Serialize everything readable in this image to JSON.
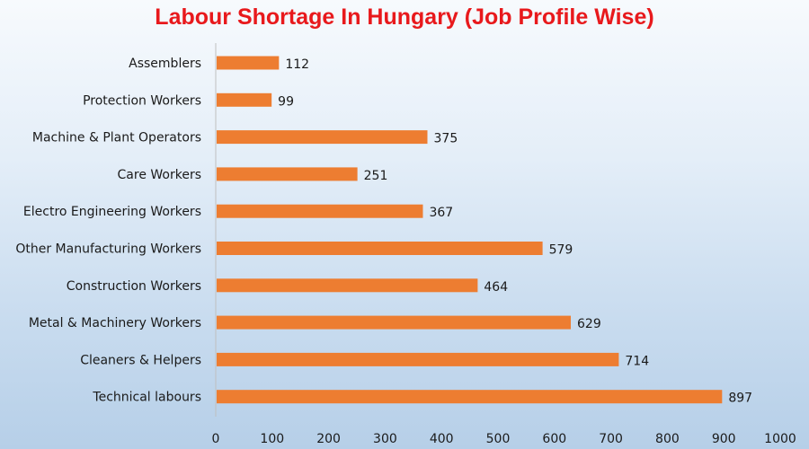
{
  "title": "Labour Shortage In Hungary (Job Profile Wise)",
  "colors": {
    "title": "#e8191c",
    "bar": "#ed7d31",
    "axis": "#bfbfbf"
  },
  "chart_data": {
    "type": "bar",
    "orientation": "horizontal",
    "title": "Labour Shortage In Hungary (Job Profile Wise)",
    "xlabel": "",
    "ylabel": "",
    "categories": [
      "Assemblers",
      "Protection Workers",
      "Machine & Plant Operators",
      "Care Workers",
      "Electro Engineering Workers",
      "Other Manufacturing Workers",
      "Construction Workers",
      "Metal & Machinery Workers",
      "Cleaners & Helpers",
      "Technical labours"
    ],
    "values": [
      112,
      99,
      375,
      251,
      367,
      579,
      464,
      629,
      714,
      897
    ],
    "xlim": [
      0,
      1000
    ],
    "xticks": [
      0,
      100,
      200,
      300,
      400,
      500,
      600,
      700,
      800,
      900,
      1000
    ],
    "grid": false,
    "legend": "none",
    "data_labels": true
  }
}
